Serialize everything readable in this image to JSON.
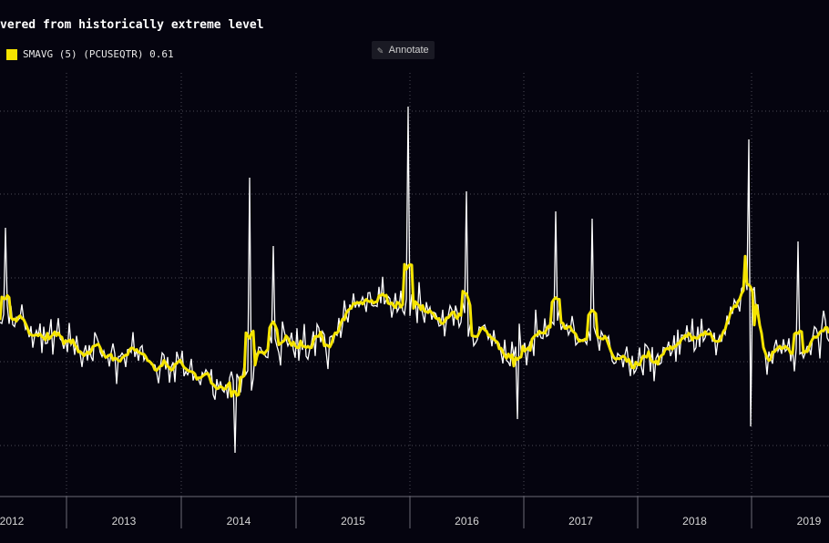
{
  "header": {
    "title": "vered from historically extreme level"
  },
  "legend": {
    "label": "SMAVG (5) (PCUSEQTR) 0.61",
    "color": "#f5e400"
  },
  "toolbar": {
    "annotate_label": "Annotate",
    "annotate_icon": "pencil-icon"
  },
  "colors": {
    "background": "#05040f",
    "raw_series": "#ffffff",
    "smoothed_series": "#f5e400",
    "grid": "#4a4a55"
  },
  "chart_data": {
    "type": "line",
    "title": "vered from historically extreme level",
    "x_axis": {
      "type": "date",
      "tick_labels": [
        "2012",
        "2013",
        "2014",
        "2015",
        "2016",
        "2017",
        "2018",
        "2019"
      ]
    },
    "y_axis": {
      "tick_labels": [],
      "note": "values not printed; 5 horizontal dotted gridlines"
    },
    "grid": true,
    "legend_position": "top-left",
    "series": [
      {
        "name": "SMAVG (5) (PCUSEQTR)",
        "last_value": 0.61,
        "color": "#f5e400",
        "style": "smoothed 5-day moving average"
      },
      {
        "color": "#ffffff",
        "style": "raw daily values (spiky)"
      }
    ],
    "notable_points": [
      {
        "x": "2014-03",
        "description": "sharp spike up"
      },
      {
        "x": "2014-03",
        "description": "deep low near chart minimum"
      },
      {
        "x": "2015-10",
        "description": "highest spike on chart"
      },
      {
        "x": "2018-12",
        "description": "tall spike"
      }
    ]
  }
}
